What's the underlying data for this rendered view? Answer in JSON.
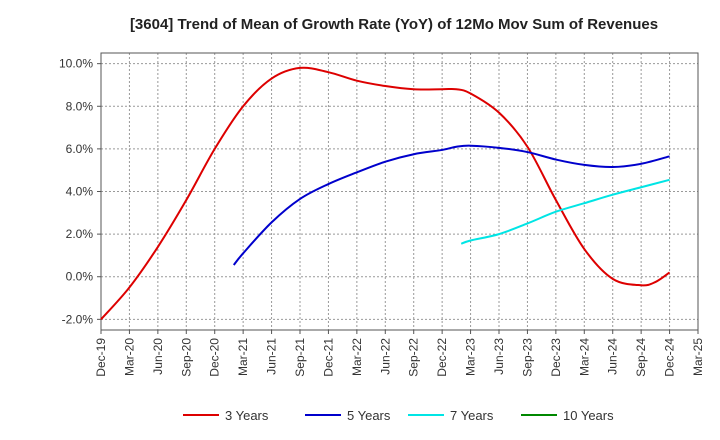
{
  "chart_data": {
    "type": "line",
    "title": "[3604]  Trend of Mean of Growth Rate (YoY) of 12Mo Mov Sum of Revenues",
    "xlabel": "",
    "ylabel": "",
    "ylim": [
      -2.5,
      10.5
    ],
    "yticks": [
      -2.0,
      0.0,
      2.0,
      4.0,
      6.0,
      8.0,
      10.0
    ],
    "ytick_labels": [
      "-2.0%",
      "0.0%",
      "2.0%",
      "4.0%",
      "6.0%",
      "8.0%",
      "10.0%"
    ],
    "xticks": [
      "Dec-19",
      "Mar-20",
      "Jun-20",
      "Sep-20",
      "Dec-20",
      "Mar-21",
      "Jun-21",
      "Sep-21",
      "Dec-21",
      "Mar-22",
      "Jun-22",
      "Sep-22",
      "Dec-22",
      "Mar-23",
      "Jun-23",
      "Sep-23",
      "Dec-23",
      "Mar-24",
      "Jun-24",
      "Sep-24",
      "Dec-24",
      "Mar-25"
    ],
    "grid": true,
    "legend_position": "bottom",
    "series": [
      {
        "name": "3 Years",
        "color": "#dd0000",
        "points": [
          [
            0,
            -2.0
          ],
          [
            1,
            -0.5
          ],
          [
            2,
            1.4
          ],
          [
            3,
            3.6
          ],
          [
            4,
            6.0
          ],
          [
            5,
            8.0
          ],
          [
            6,
            9.3
          ],
          [
            7,
            9.8
          ],
          [
            8,
            9.6
          ],
          [
            9,
            9.2
          ],
          [
            10,
            8.95
          ],
          [
            11,
            8.8
          ],
          [
            12,
            8.8
          ],
          [
            12.5,
            8.8
          ],
          [
            13,
            8.6
          ],
          [
            14,
            7.7
          ],
          [
            15,
            6.1
          ],
          [
            16,
            3.6
          ],
          [
            17,
            1.3
          ],
          [
            18,
            -0.1
          ],
          [
            19,
            -0.4
          ],
          [
            19.5,
            -0.25
          ],
          [
            20,
            0.2
          ]
        ]
      },
      {
        "name": "5 Years",
        "color": "#0000cc",
        "points": [
          [
            4.67,
            0.55
          ],
          [
            5,
            1.1
          ],
          [
            6,
            2.55
          ],
          [
            7,
            3.65
          ],
          [
            8,
            4.35
          ],
          [
            9,
            4.9
          ],
          [
            10,
            5.4
          ],
          [
            11,
            5.75
          ],
          [
            12,
            5.95
          ],
          [
            12.5,
            6.1
          ],
          [
            13,
            6.15
          ],
          [
            14,
            6.05
          ],
          [
            15,
            5.85
          ],
          [
            16,
            5.5
          ],
          [
            17,
            5.25
          ],
          [
            18,
            5.15
          ],
          [
            19,
            5.3
          ],
          [
            20,
            5.65
          ]
        ]
      },
      {
        "name": "7 Years",
        "color": "#00e5e5",
        "points": [
          [
            12.67,
            1.55
          ],
          [
            13,
            1.7
          ],
          [
            14,
            2.0
          ],
          [
            15,
            2.5
          ],
          [
            16,
            3.05
          ],
          [
            17,
            3.45
          ],
          [
            18,
            3.85
          ],
          [
            19,
            4.2
          ],
          [
            20,
            4.55
          ]
        ]
      },
      {
        "name": "10 Years",
        "color": "#008800",
        "points": []
      }
    ]
  }
}
